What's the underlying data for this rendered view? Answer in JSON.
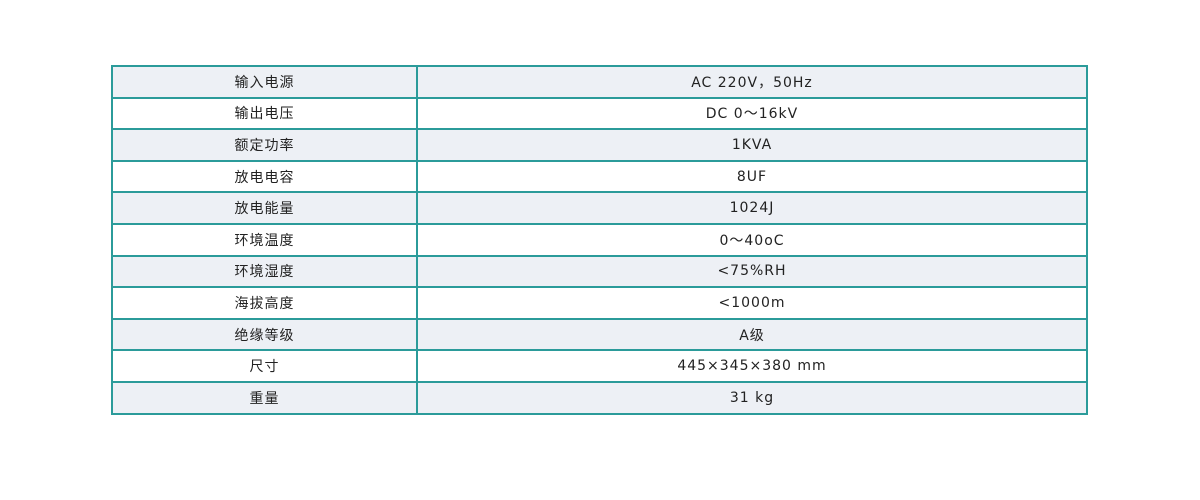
{
  "specs": [
    {
      "label": "输入电源",
      "value": "AC 220V，50Hz"
    },
    {
      "label": "输出电压",
      "value": "DC 0～16kV"
    },
    {
      "label": "额定功率",
      "value": "1KVA"
    },
    {
      "label": "放电电容",
      "value": "8UF"
    },
    {
      "label": "放电能量",
      "value": "1024J"
    },
    {
      "label": "环境温度",
      "value": "0～40oC"
    },
    {
      "label": "环境湿度",
      "value": "<75%RH"
    },
    {
      "label": "海拔高度",
      "value": "<1000m"
    },
    {
      "label": "绝缘等级",
      "value": "A级"
    },
    {
      "label": "尺寸",
      "value": "445×345×380 mm"
    },
    {
      "label": "重量",
      "value": "31 kg"
    }
  ],
  "colors": {
    "border": "#2b9b9a",
    "row_shade": "#edf0f5"
  }
}
